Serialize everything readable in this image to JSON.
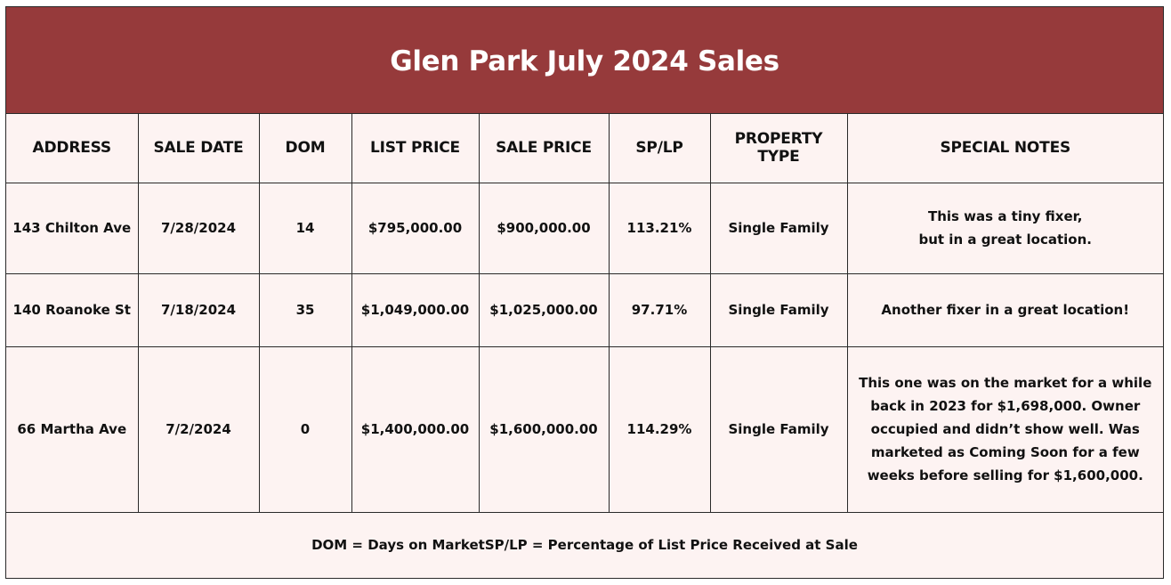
{
  "title": "Glen Park July 2024 Sales",
  "colors": {
    "header_bg": "#963a3b",
    "body_bg": "#fdf3f2",
    "border": "#2a2a2a"
  },
  "table": {
    "headers": [
      "ADDRESS",
      "SALE DATE",
      "DOM",
      "LIST PRICE",
      "SALE PRICE",
      "SP/LP",
      "PROPERTY TYPE",
      "SPECIAL NOTES"
    ],
    "rows": [
      {
        "address": "143 Chilton Ave",
        "sale_date": "7/28/2024",
        "dom": "14",
        "list_price": "$795,000.00",
        "sale_price": "$900,000.00",
        "sp_lp": "113.21%",
        "property_type": "Single Family",
        "notes": [
          "This was a tiny fixer,",
          "but in a great location."
        ]
      },
      {
        "address": "140 Roanoke St",
        "sale_date": "7/18/2024",
        "dom": "35",
        "list_price": "$1,049,000.00",
        "sale_price": "$1,025,000.00",
        "sp_lp": "97.71%",
        "property_type": "Single Family",
        "notes": [
          "Another fixer in a great location!"
        ]
      },
      {
        "address": "66 Martha Ave",
        "sale_date": "7/2/2024",
        "dom": "0",
        "list_price": "$1,400,000.00",
        "sale_price": "$1,600,000.00",
        "sp_lp": "114.29%",
        "property_type": "Single Family",
        "notes": [
          "This one was on the market for a while",
          "back in 2023 for $1,698,000. Owner",
          "occupied and didn’t show well. Was",
          "marketed as Coming Soon for a few",
          "weeks before selling for $1,600,000."
        ]
      }
    ]
  },
  "footer": {
    "dom_legend": "DOM = Days on Market",
    "splp_legend": "SP/LP = Percentage of List Price Received at Sale"
  }
}
